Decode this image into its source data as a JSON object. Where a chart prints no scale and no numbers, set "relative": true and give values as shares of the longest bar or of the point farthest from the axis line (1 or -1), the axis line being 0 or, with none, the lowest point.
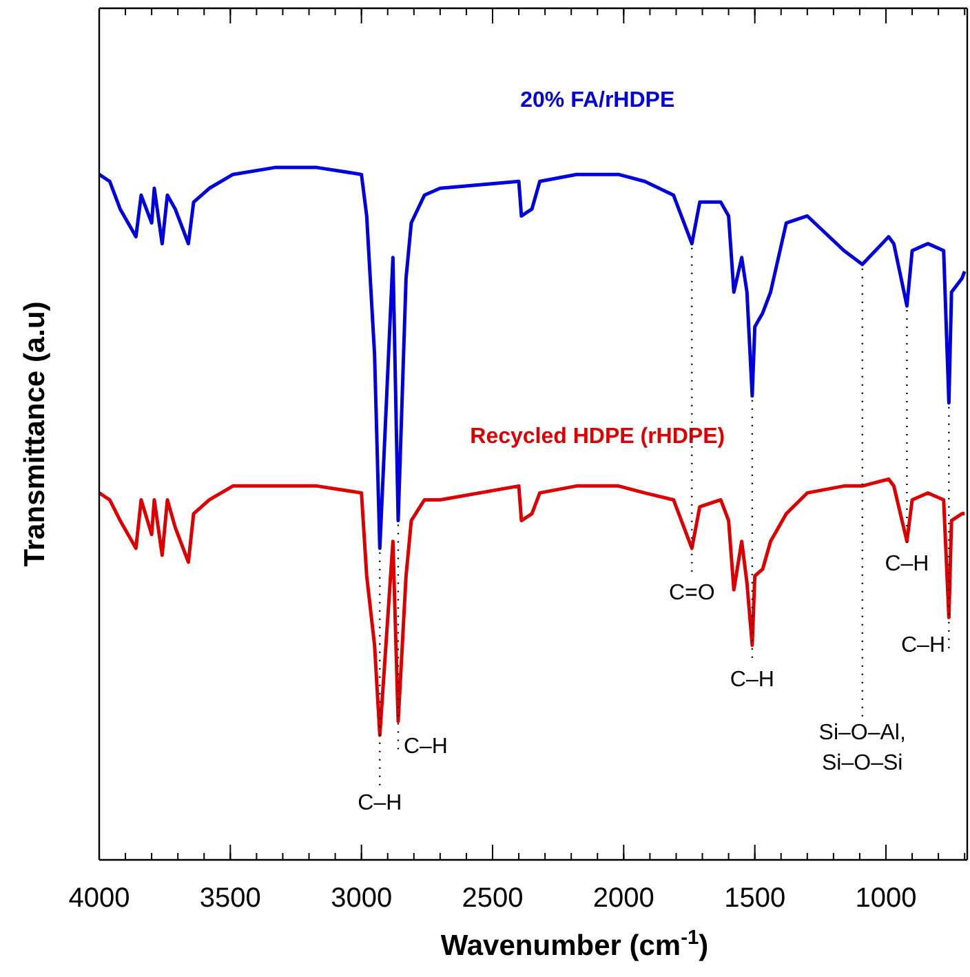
{
  "chart_data": {
    "type": "line",
    "relative": true,
    "xlabel": "Wavenumber (cm$^{-1}$)",
    "ylabel": "Transmittance (a.u)",
    "xlim": [
      4000,
      690
    ],
    "xticks": [
      4000,
      3500,
      3000,
      2500,
      2000,
      1500,
      1000
    ],
    "grid": false,
    "legend": false,
    "marker": "none",
    "line_style": "solid",
    "x": [
      4000,
      3960,
      3920,
      3860,
      3840,
      3800,
      3790,
      3760,
      3740,
      3710,
      3660,
      3640,
      3580,
      3490,
      3330,
      3170,
      3000,
      2980,
      2950,
      2930,
      2880,
      2860,
      2830,
      2810,
      2760,
      2700,
      2400,
      2390,
      2350,
      2320,
      2180,
      2020,
      1920,
      1810,
      1740,
      1710,
      1630,
      1600,
      1580,
      1550,
      1530,
      1510,
      1500,
      1470,
      1440,
      1380,
      1300,
      1160,
      1090,
      990,
      970,
      920,
      900,
      840,
      780,
      760,
      750,
      710,
      700
    ],
    "series": [
      {
        "name": "20% FA/rHDPE",
        "color": "#0000dd",
        "values": [
          0.99,
          0.98,
          0.94,
          0.9,
          0.96,
          0.92,
          0.97,
          0.89,
          0.96,
          0.94,
          0.89,
          0.95,
          0.97,
          0.99,
          1.0,
          1.0,
          0.99,
          0.93,
          0.73,
          0.45,
          0.87,
          0.49,
          0.84,
          0.92,
          0.96,
          0.97,
          0.98,
          0.93,
          0.94,
          0.98,
          0.99,
          0.99,
          0.98,
          0.96,
          0.89,
          0.95,
          0.95,
          0.93,
          0.82,
          0.87,
          0.82,
          0.67,
          0.77,
          0.79,
          0.82,
          0.92,
          0.93,
          0.88,
          0.86,
          0.9,
          0.89,
          0.8,
          0.88,
          0.89,
          0.88,
          0.66,
          0.82,
          0.84,
          0.85
        ]
      },
      {
        "name": "Recycled HDPE (rHDPE)",
        "color": "#dd0000",
        "values": [
          0.53,
          0.52,
          0.49,
          0.45,
          0.52,
          0.47,
          0.52,
          0.44,
          0.52,
          0.48,
          0.43,
          0.5,
          0.52,
          0.54,
          0.54,
          0.54,
          0.53,
          0.41,
          0.31,
          0.18,
          0.46,
          0.2,
          0.41,
          0.49,
          0.52,
          0.52,
          0.54,
          0.49,
          0.5,
          0.53,
          0.54,
          0.54,
          0.53,
          0.52,
          0.45,
          0.51,
          0.52,
          0.49,
          0.39,
          0.46,
          0.4,
          0.31,
          0.41,
          0.42,
          0.46,
          0.5,
          0.53,
          0.54,
          0.54,
          0.55,
          0.54,
          0.46,
          0.52,
          0.53,
          0.52,
          0.35,
          0.49,
          0.5,
          0.5
        ]
      }
    ],
    "annotations": [
      {
        "text": "C–H",
        "x": 2930,
        "y": 0.45
      },
      {
        "text": "C–H",
        "x": 2860,
        "y": 0.49
      },
      {
        "text": "C=O",
        "x": 1740,
        "y": 0.89
      },
      {
        "text": "C–H",
        "x": 1510,
        "y": 0.67
      },
      {
        "text": "Si–O–Al,\nSi–O–Si",
        "x": 1090,
        "y": 0.86
      },
      {
        "text": "C–H",
        "x": 920,
        "y": 0.8
      },
      {
        "text": "C–H",
        "x": 760,
        "y": 0.66
      }
    ]
  }
}
